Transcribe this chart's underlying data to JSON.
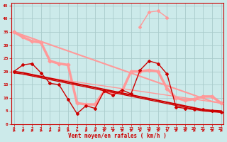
{
  "xlabel": "Vent moyen/en rafales ( km/h )",
  "background_color": "#cceaea",
  "grid_color": "#aacccc",
  "x": [
    0,
    1,
    2,
    3,
    4,
    5,
    6,
    7,
    8,
    9,
    10,
    11,
    12,
    13,
    14,
    15,
    16,
    17,
    18,
    19,
    20,
    21,
    22,
    23
  ],
  "line_light_wide_y": [
    35.0,
    33.0,
    31.5,
    31.0,
    24.0,
    23.0,
    22.5,
    8.0,
    7.5,
    7.5,
    12.5,
    11.5,
    12.5,
    20.0,
    20.0,
    20.5,
    20.0,
    13.5,
    10.0,
    9.0,
    9.5,
    10.5,
    10.5,
    8.0
  ],
  "line_light_peak_y": [
    null,
    null,
    null,
    null,
    null,
    null,
    null,
    null,
    null,
    null,
    null,
    null,
    null,
    null,
    37.0,
    42.5,
    43.0,
    40.5,
    null,
    null,
    null,
    null,
    null,
    null
  ],
  "line_light_reg1_y": [
    35.0,
    33.8,
    32.6,
    31.4,
    30.2,
    29.0,
    27.8,
    26.6,
    25.4,
    24.2,
    23.0,
    21.8,
    20.6,
    19.4,
    18.2,
    17.0,
    15.8,
    14.6,
    13.4,
    12.2,
    11.0,
    9.8,
    8.6,
    8.0
  ],
  "line_light_reg2_y": [
    19.5,
    19.0,
    18.5,
    18.0,
    17.5,
    17.0,
    16.5,
    16.0,
    15.5,
    15.0,
    14.5,
    14.0,
    13.5,
    13.0,
    12.5,
    12.0,
    11.5,
    11.0,
    10.5,
    10.0,
    9.5,
    9.0,
    8.5,
    8.0
  ],
  "line_dark_jagged_y": [
    20.0,
    22.5,
    23.0,
    19.5,
    15.5,
    15.0,
    9.5,
    4.0,
    7.0,
    6.0,
    12.5,
    11.0,
    13.0,
    11.5,
    20.5,
    24.0,
    23.0,
    19.0,
    6.5,
    6.0,
    5.5,
    5.5,
    5.0,
    4.5
  ],
  "line_dark_reg1_y": [
    20.0,
    19.5,
    18.8,
    18.1,
    17.4,
    16.7,
    16.0,
    15.3,
    14.6,
    13.9,
    13.2,
    12.5,
    11.8,
    11.1,
    10.4,
    9.7,
    9.0,
    8.3,
    7.6,
    6.9,
    6.2,
    5.5,
    5.2,
    5.0
  ],
  "line_dark_reg2_y": [
    19.5,
    19.0,
    18.3,
    17.6,
    16.9,
    16.2,
    15.5,
    14.8,
    14.1,
    13.4,
    12.7,
    12.0,
    11.3,
    10.6,
    9.9,
    9.2,
    8.5,
    7.8,
    7.1,
    6.4,
    5.7,
    5.0,
    4.7,
    4.5
  ],
  "color_light": "#ff9999",
  "color_dark": "#cc0000",
  "ylim_min": 0,
  "ylim_max": 46,
  "xlim_min": -0.3,
  "xlim_max": 23.3,
  "yticks": [
    0,
    5,
    10,
    15,
    20,
    25,
    30,
    35,
    40,
    45
  ],
  "xticks": [
    0,
    1,
    2,
    3,
    4,
    5,
    6,
    7,
    8,
    9,
    10,
    11,
    12,
    13,
    14,
    15,
    16,
    17,
    18,
    19,
    20,
    21,
    22,
    23
  ],
  "wind_arrows": [
    "→",
    "→",
    "→",
    "↗",
    "→",
    "→",
    "↘",
    "↓",
    "→",
    "→",
    "↘",
    "↘",
    "↘",
    "↘",
    "↓",
    "↘",
    "↘",
    "→",
    "→",
    "→",
    "↘",
    "↓",
    "→",
    "↘"
  ]
}
